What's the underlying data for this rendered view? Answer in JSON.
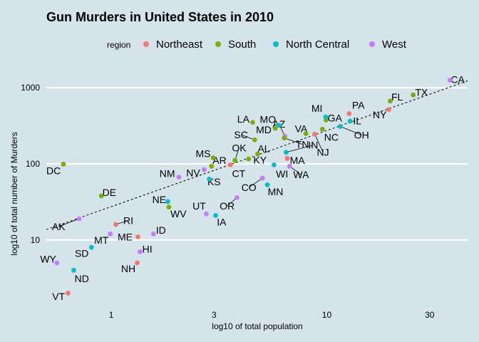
{
  "chart_data": {
    "type": "scatter",
    "title": "Gun Murders in United States in 2010",
    "xlabel": "log10 of total population",
    "ylabel": "log10 of total number of Murders",
    "x_scale": "log10",
    "y_scale": "log10",
    "xlim": [
      0.5,
      45
    ],
    "ylim": [
      1.4,
      2000
    ],
    "x_ticks": [
      1,
      3,
      10,
      30
    ],
    "y_ticks": [
      10,
      100,
      1000
    ],
    "x_tick_labels": [
      "1",
      "3",
      "10",
      "30"
    ],
    "y_tick_labels": [
      "10",
      "100",
      "1000"
    ],
    "grid": true,
    "legend": {
      "title": "region",
      "position": "top",
      "entries": [
        {
          "name": "Northeast",
          "color": "#F8766D"
        },
        {
          "name": "South",
          "color": "#7CAE00"
        },
        {
          "name": "North Central",
          "color": "#00BFC4"
        },
        {
          "name": "West",
          "color": "#C77CFF"
        }
      ]
    },
    "fit_line": {
      "style": "dashed",
      "x": [
        0.5,
        45
      ],
      "y": [
        13.7,
        1232
      ]
    },
    "points": [
      {
        "label": "AK",
        "region": "West",
        "x": 0.71,
        "y": 19,
        "lx": 0.57,
        "ly": 15
      },
      {
        "label": "AL",
        "region": "South",
        "x": 4.78,
        "y": 135,
        "lx": 5.1,
        "ly": 159
      },
      {
        "label": "AR",
        "region": "South",
        "x": 2.92,
        "y": 93,
        "lx": 3.18,
        "ly": 111
      },
      {
        "label": "AZ",
        "region": "West",
        "x": 6.39,
        "y": 232,
        "lx": 6.0,
        "ly": 333
      },
      {
        "label": "CA",
        "region": "West",
        "x": 37.25,
        "y": 1257,
        "lx": 40.5,
        "ly": 1290
      },
      {
        "label": "CO",
        "region": "West",
        "x": 5.03,
        "y": 65,
        "lx": 4.35,
        "ly": 49
      },
      {
        "label": "CT",
        "region": "Northeast",
        "x": 3.57,
        "y": 97,
        "lx": 3.9,
        "ly": 75
      },
      {
        "label": "DC",
        "region": "South",
        "x": 0.6,
        "y": 99,
        "lx": 0.54,
        "ly": 81
      },
      {
        "label": "DE",
        "region": "South",
        "x": 0.9,
        "y": 38,
        "lx": 0.98,
        "ly": 42
      },
      {
        "label": "FL",
        "region": "South",
        "x": 19.69,
        "y": 669,
        "lx": 21.2,
        "ly": 760
      },
      {
        "label": "GA",
        "region": "South",
        "x": 9.92,
        "y": 376,
        "lx": 10.9,
        "ly": 400
      },
      {
        "label": "HI",
        "region": "West",
        "x": 1.36,
        "y": 7,
        "lx": 1.47,
        "ly": 7.6
      },
      {
        "label": "IA",
        "region": "North Central",
        "x": 3.05,
        "y": 21,
        "lx": 3.25,
        "ly": 17.3
      },
      {
        "label": "ID",
        "region": "West",
        "x": 1.57,
        "y": 12,
        "lx": 1.7,
        "ly": 13.5
      },
      {
        "label": "IL",
        "region": "North Central",
        "x": 12.83,
        "y": 364,
        "lx": 13.85,
        "ly": 370
      },
      {
        "label": "IN",
        "region": "North Central",
        "x": 6.48,
        "y": 142,
        "lx": 8.65,
        "ly": 176
      },
      {
        "label": "KS",
        "region": "North Central",
        "x": 2.85,
        "y": 63,
        "lx": 3.0,
        "ly": 58
      },
      {
        "label": "KY",
        "region": "South",
        "x": 4.34,
        "y": 116,
        "lx": 4.9,
        "ly": 112
      },
      {
        "label": "LA",
        "region": "South",
        "x": 4.53,
        "y": 351,
        "lx": 4.1,
        "ly": 390
      },
      {
        "label": "MA",
        "region": "Northeast",
        "x": 6.55,
        "y": 118,
        "lx": 7.3,
        "ly": 111
      },
      {
        "label": "MD",
        "region": "South",
        "x": 5.77,
        "y": 293,
        "lx": 5.1,
        "ly": 282
      },
      {
        "label": "ME",
        "region": "Northeast",
        "x": 1.33,
        "y": 11,
        "lx": 1.16,
        "ly": 11
      },
      {
        "label": "MI",
        "region": "North Central",
        "x": 9.88,
        "y": 413,
        "lx": 9.0,
        "ly": 538
      },
      {
        "label": "MN",
        "region": "North Central",
        "x": 5.3,
        "y": 53,
        "lx": 5.78,
        "ly": 43
      },
      {
        "label": "MO",
        "region": "North Central",
        "x": 5.99,
        "y": 321,
        "lx": 5.33,
        "ly": 385
      },
      {
        "label": "MS",
        "region": "South",
        "x": 2.97,
        "y": 120,
        "lx": 2.67,
        "ly": 136
      },
      {
        "label": "MT",
        "region": "West",
        "x": 0.99,
        "y": 12,
        "lx": 0.9,
        "ly": 10
      },
      {
        "label": "NC",
        "region": "South",
        "x": 9.54,
        "y": 286,
        "lx": 10.5,
        "ly": 225
      },
      {
        "label": "ND",
        "region": "North Central",
        "x": 0.67,
        "y": 4,
        "lx": 0.73,
        "ly": 3.12
      },
      {
        "label": "NE",
        "region": "North Central",
        "x": 1.83,
        "y": 32,
        "lx": 1.67,
        "ly": 34
      },
      {
        "label": "NH",
        "region": "Northeast",
        "x": 1.32,
        "y": 5,
        "lx": 1.2,
        "ly": 4.2
      },
      {
        "label": "NJ",
        "region": "Northeast",
        "x": 8.79,
        "y": 246,
        "lx": 9.6,
        "ly": 142
      },
      {
        "label": "NM",
        "region": "West",
        "x": 2.06,
        "y": 67,
        "lx": 1.82,
        "ly": 75
      },
      {
        "label": "NV",
        "region": "West",
        "x": 2.7,
        "y": 84,
        "lx": 2.4,
        "ly": 76
      },
      {
        "label": "NY",
        "region": "Northeast",
        "x": 19.38,
        "y": 517,
        "lx": 17.6,
        "ly": 440
      },
      {
        "label": "OH",
        "region": "North Central",
        "x": 11.54,
        "y": 310,
        "lx": 14.5,
        "ly": 240
      },
      {
        "label": "OK",
        "region": "South",
        "x": 3.75,
        "y": 111,
        "lx": 3.92,
        "ly": 163
      },
      {
        "label": "OR",
        "region": "West",
        "x": 3.83,
        "y": 36,
        "lx": 3.45,
        "ly": 28
      },
      {
        "label": "PA",
        "region": "Northeast",
        "x": 12.7,
        "y": 457,
        "lx": 14.0,
        "ly": 590
      },
      {
        "label": "RI",
        "region": "Northeast",
        "x": 1.05,
        "y": 16,
        "lx": 1.2,
        "ly": 18
      },
      {
        "label": "SC",
        "region": "South",
        "x": 4.63,
        "y": 207,
        "lx": 4.0,
        "ly": 242
      },
      {
        "label": "SD",
        "region": "North Central",
        "x": 0.81,
        "y": 8,
        "lx": 0.73,
        "ly": 6.7
      },
      {
        "label": "TN",
        "region": "South",
        "x": 6.35,
        "y": 219,
        "lx": 7.7,
        "ly": 181
      },
      {
        "label": "TX",
        "region": "South",
        "x": 25.15,
        "y": 805,
        "lx": 27.5,
        "ly": 872
      },
      {
        "label": "UT",
        "region": "West",
        "x": 2.76,
        "y": 22,
        "lx": 2.56,
        "ly": 28
      },
      {
        "label": "VA",
        "region": "South",
        "x": 8.0,
        "y": 250,
        "lx": 7.6,
        "ly": 289
      },
      {
        "label": "VT",
        "region": "Northeast",
        "x": 0.63,
        "y": 2,
        "lx": 0.57,
        "ly": 1.82
      },
      {
        "label": "WA",
        "region": "West",
        "x": 6.72,
        "y": 93,
        "lx": 7.6,
        "ly": 72
      },
      {
        "label": "WI",
        "region": "North Central",
        "x": 5.69,
        "y": 97,
        "lx": 6.2,
        "ly": 74
      },
      {
        "label": "WV",
        "region": "South",
        "x": 1.85,
        "y": 27,
        "lx": 2.05,
        "ly": 22
      },
      {
        "label": "WY",
        "region": "West",
        "x": 0.56,
        "y": 5,
        "lx": 0.51,
        "ly": 5.6
      }
    ]
  }
}
